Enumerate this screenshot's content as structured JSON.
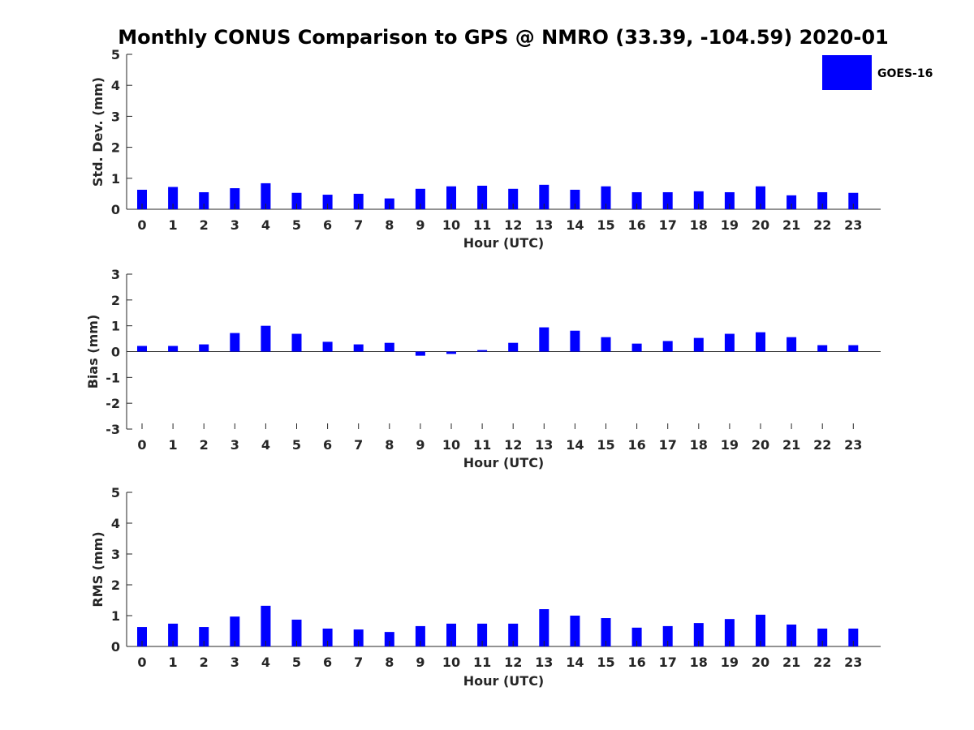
{
  "figure_title": "Monthly CONUS Comparison to GPS @ NMRO (33.39, -104.59) 2020-01",
  "legend": {
    "label": "GOES-16",
    "color": "#0000ff"
  },
  "chart_data": [
    {
      "type": "bar",
      "xlabel": "Hour (UTC)",
      "ylabel": "Std. Dev. (mm)",
      "ylim": [
        0,
        5
      ],
      "yticks": [
        "0",
        "1",
        "2",
        "3",
        "4",
        "5"
      ],
      "categories": [
        "0",
        "1",
        "2",
        "3",
        "4",
        "5",
        "6",
        "7",
        "8",
        "9",
        "10",
        "11",
        "12",
        "13",
        "14",
        "15",
        "16",
        "17",
        "18",
        "19",
        "20",
        "21",
        "22",
        "23"
      ],
      "series": [
        {
          "name": "GOES-16",
          "color": "#0000ff",
          "values": [
            0.63,
            0.72,
            0.55,
            0.68,
            0.84,
            0.53,
            0.47,
            0.5,
            0.35,
            0.66,
            0.74,
            0.76,
            0.66,
            0.79,
            0.63,
            0.74,
            0.55,
            0.55,
            0.58,
            0.55,
            0.74,
            0.45,
            0.55,
            0.53
          ]
        }
      ]
    },
    {
      "type": "bar",
      "xlabel": "Hour (UTC)",
      "ylabel": "Bias (mm)",
      "ylim": [
        -3,
        3
      ],
      "yticks": [
        "-3",
        "-2",
        "-1",
        "0",
        "1",
        "2",
        "3"
      ],
      "categories": [
        "0",
        "1",
        "2",
        "3",
        "4",
        "5",
        "6",
        "7",
        "8",
        "9",
        "10",
        "11",
        "12",
        "13",
        "14",
        "15",
        "16",
        "17",
        "18",
        "19",
        "20",
        "21",
        "22",
        "23"
      ],
      "series": [
        {
          "name": "GOES-16",
          "color": "#0000ff",
          "values": [
            0.22,
            0.22,
            0.28,
            0.72,
            1.0,
            0.69,
            0.38,
            0.28,
            0.34,
            -0.16,
            -0.09,
            0.06,
            0.34,
            0.94,
            0.81,
            0.56,
            0.31,
            0.41,
            0.53,
            0.69,
            0.75,
            0.56,
            0.25,
            0.25
          ]
        }
      ]
    },
    {
      "type": "bar",
      "xlabel": "Hour (UTC)",
      "ylabel": "RMS (mm)",
      "ylim": [
        0,
        5
      ],
      "yticks": [
        "0",
        "1",
        "2",
        "3",
        "4",
        "5"
      ],
      "categories": [
        "0",
        "1",
        "2",
        "3",
        "4",
        "5",
        "6",
        "7",
        "8",
        "9",
        "10",
        "11",
        "12",
        "13",
        "14",
        "15",
        "16",
        "17",
        "18",
        "19",
        "20",
        "21",
        "22",
        "23"
      ],
      "series": [
        {
          "name": "GOES-16",
          "color": "#0000ff",
          "values": [
            0.63,
            0.74,
            0.63,
            0.97,
            1.32,
            0.87,
            0.58,
            0.55,
            0.47,
            0.66,
            0.74,
            0.74,
            0.74,
            1.21,
            1.0,
            0.92,
            0.61,
            0.66,
            0.76,
            0.89,
            1.03,
            0.71,
            0.58,
            0.58
          ]
        }
      ]
    }
  ]
}
